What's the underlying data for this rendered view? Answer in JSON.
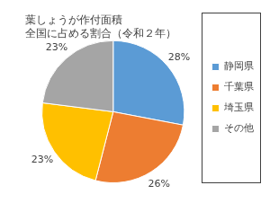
{
  "chart_data": {
    "type": "pie",
    "title": [
      "葉しょうが作付面積",
      "全国に占める割合（令和２年）"
    ],
    "categories": [
      "静岡県",
      "千葉県",
      "埼玉県",
      "その他"
    ],
    "values": [
      28,
      26,
      23,
      23
    ],
    "value_labels": [
      "28%",
      "26%",
      "23%",
      "23%"
    ],
    "colors": [
      "#5b9bd5",
      "#ed7d31",
      "#ffc000",
      "#a5a5a5"
    ],
    "legend": "right",
    "data_labels": true
  }
}
